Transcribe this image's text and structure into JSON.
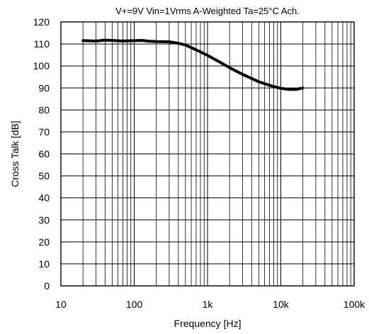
{
  "chart_data": {
    "type": "line",
    "title": "V+=9V Vin=1Vrms A-Weighted Ta=25°C Ach.",
    "xlabel": "Frequency [Hz]",
    "ylabel": "Cross Talk [dB]",
    "x_scale": "log",
    "xlim": [
      10,
      100000
    ],
    "ylim": [
      0,
      120
    ],
    "grid": true,
    "x_ticks": [
      10,
      100,
      1000,
      10000,
      100000
    ],
    "x_tick_labels": [
      "10",
      "100",
      "1k",
      "10k",
      "100k"
    ],
    "y_ticks": [
      0,
      10,
      20,
      30,
      40,
      50,
      60,
      70,
      80,
      90,
      100,
      110,
      120
    ],
    "y_tick_labels": [
      "0",
      "10",
      "20",
      "30",
      "40",
      "50",
      "60",
      "70",
      "80",
      "90",
      "100",
      "110",
      "120"
    ],
    "series": [
      {
        "color": "#000000",
        "x": [
          20,
          30,
          40,
          50,
          70,
          100,
          130,
          150,
          200,
          300,
          400,
          500,
          700,
          1000,
          1500,
          2000,
          3000,
          4000,
          5000,
          7000,
          10000,
          13000,
          16000,
          20000
        ],
        "y": [
          111.5,
          111.3,
          111.7,
          111.6,
          111.3,
          111.5,
          111.6,
          111.3,
          111.1,
          111.0,
          110.3,
          109.5,
          107.3,
          104.8,
          101.6,
          99.2,
          96.2,
          94.3,
          92.8,
          91.2,
          89.8,
          89.3,
          89.3,
          90.0
        ]
      }
    ]
  }
}
